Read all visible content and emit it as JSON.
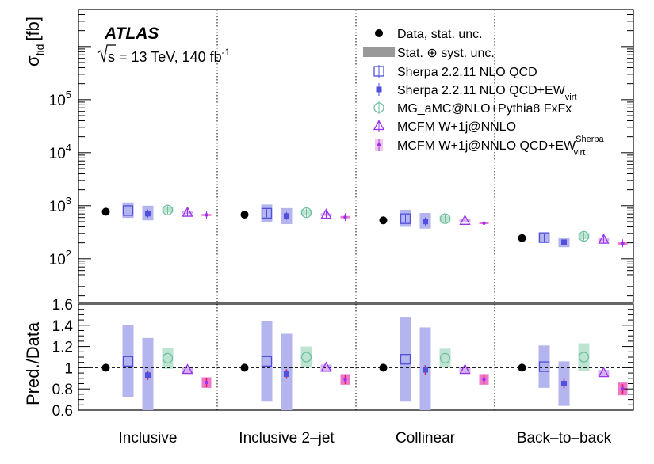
{
  "chart_data": {
    "type": "scatter",
    "experiment": "ATLAS",
    "energy_label": "s = 13 TeV, 140 fb",
    "lumi_superscript": "-1",
    "categories": [
      "Inclusive",
      "Inclusive 2–jet",
      "Collinear",
      "Back–to–back"
    ],
    "upper_panel": {
      "ylabel": "σ",
      "ylabel_sub": "fid",
      "ylabel_unit": "[fb]",
      "yscale": "log",
      "ylim": [
        15,
        5000000
      ],
      "ytick_values": [
        100,
        1000,
        10000,
        100000
      ],
      "ytick_labels": [
        {
          "base": "10",
          "exp": "2"
        },
        {
          "base": "10",
          "exp": "3"
        },
        {
          "base": "10",
          "exp": "4"
        },
        {
          "base": "10",
          "exp": "5"
        }
      ]
    },
    "lower_panel": {
      "ylabel": "Pred./Data",
      "ylim": [
        0.6,
        1.6
      ],
      "ytick_values": [
        0.6,
        0.8,
        1.0,
        1.2,
        1.4,
        1.6
      ],
      "ytick_labels": [
        "0.6",
        "0.8",
        "1",
        "1.2",
        "1.4",
        "1.6"
      ],
      "reference_line": 1.0
    },
    "series": [
      {
        "name": "Data, stat. unc.",
        "marker": "filled-circle",
        "color": "#000000",
        "values": [
          770,
          680,
          530,
          245
        ],
        "ratio": [
          1.0,
          1.0,
          1.0,
          1.0
        ],
        "ratio_unc": [
          0.0,
          0.0,
          0.0,
          0.0
        ]
      },
      {
        "name": "Sherpa 2.2.11 NLO QCD",
        "marker": "open-square",
        "color": "#5050dd",
        "band_color": "#b4b4ee",
        "values": [
          810,
          720,
          570,
          250
        ],
        "unc_low": [
          590,
          500,
          400,
          200
        ],
        "unc_high": [
          1150,
          1050,
          840,
          310
        ],
        "ratio": [
          1.06,
          1.06,
          1.08,
          1.01
        ],
        "ratio_unc": [
          0.34,
          0.38,
          0.4,
          0.2
        ]
      },
      {
        "name": "Sherpa 2.2.11 NLO QCD+EW",
        "name_sub": "virt",
        "marker": "filled-square",
        "color": "#5050dd",
        "band_color": "#b4b4ee",
        "values": [
          710,
          640,
          505,
          205
        ],
        "unc_low": [
          530,
          450,
          370,
          165
        ],
        "unc_high": [
          1000,
          900,
          730,
          250
        ],
        "ratio": [
          0.93,
          0.94,
          0.98,
          0.85
        ],
        "ratio_unc": [
          0.35,
          0.38,
          0.4,
          0.21
        ]
      },
      {
        "name": "MG_aMC@NLO+Pythia8 FxFx",
        "marker": "open-circle",
        "color": "#6fbf9f",
        "band_color": "#bde3d3",
        "values": [
          830,
          740,
          570,
          265
        ],
        "unc_low": [
          740,
          650,
          500,
          235
        ],
        "unc_high": [
          930,
          840,
          650,
          305
        ],
        "ratio": [
          1.09,
          1.1,
          1.09,
          1.1
        ],
        "ratio_unc": [
          0.1,
          0.1,
          0.09,
          0.13
        ]
      },
      {
        "name": "MCFM W+1j@NNLO",
        "marker": "open-triangle",
        "color": "#9933ee",
        "band_color": "#d4b4f2",
        "values": [
          740,
          680,
          520,
          230
        ],
        "unc_low": [
          700,
          640,
          490,
          215
        ],
        "unc_high": [
          790,
          720,
          560,
          245
        ],
        "ratio": [
          0.98,
          1.0,
          0.98,
          0.95
        ],
        "ratio_unc": [
          0.03,
          0.03,
          0.03,
          0.03
        ]
      },
      {
        "name": "MCFM W+1j@NNLO QCD+EW",
        "name_sub": "virt",
        "name_sup": "Sherpa",
        "marker": "small-dot",
        "color": "#9933ee",
        "band_color": "#ee77cc",
        "values": [
          670,
          610,
          470,
          195
        ],
        "unc_low": [
          640,
          580,
          450,
          185
        ],
        "unc_high": [
          700,
          640,
          495,
          205
        ],
        "ratio": [
          0.86,
          0.89,
          0.89,
          0.8
        ],
        "ratio_unc": [
          0.05,
          0.05,
          0.05,
          0.06
        ]
      }
    ],
    "legend_extra": {
      "name": "Stat. ⊕ syst. unc.",
      "color": "#999999"
    },
    "legend_position": "top-right"
  }
}
